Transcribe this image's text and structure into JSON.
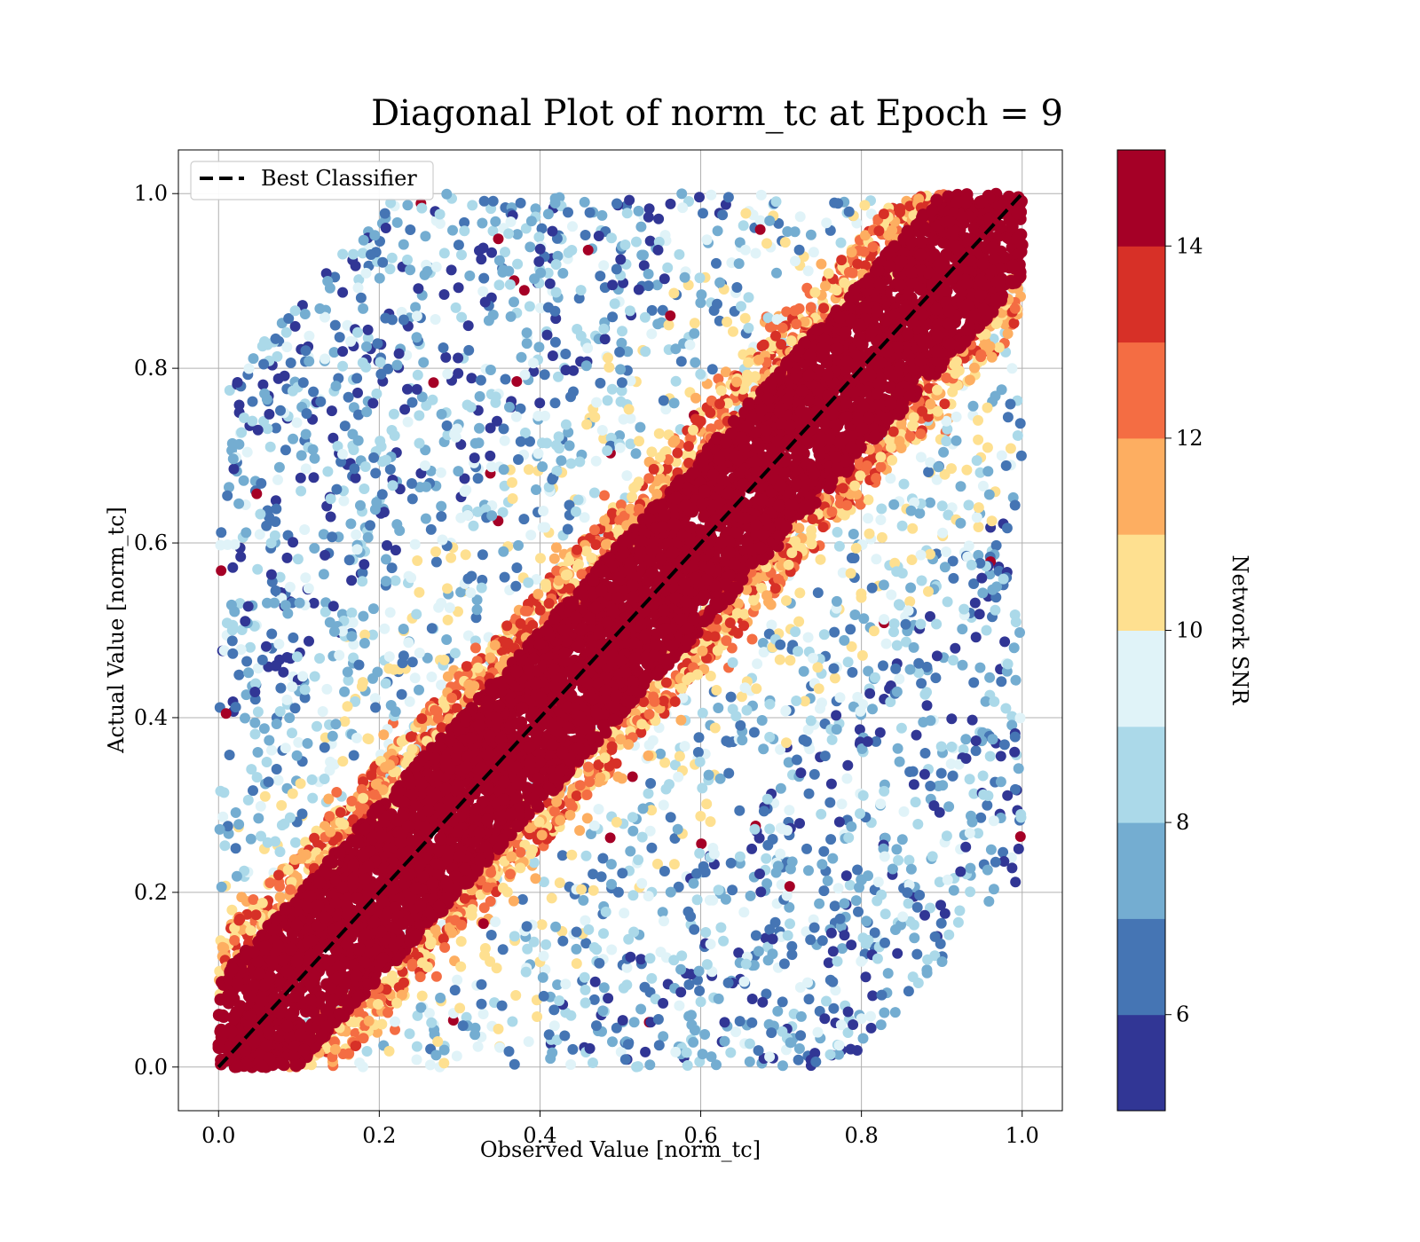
{
  "chart_data": {
    "type": "scatter",
    "title": "Diagonal Plot of norm_tc at Epoch = 9",
    "xlabel": "Observed Value [norm_tc]",
    "ylabel": "Actual Value [norm_tc]",
    "xlim": [
      -0.05,
      1.05
    ],
    "ylim": [
      -0.05,
      1.05
    ],
    "xticks": [
      "0.0",
      "0.2",
      "0.4",
      "0.6",
      "0.8",
      "1.0"
    ],
    "xtick_values": [
      0.0,
      0.2,
      0.4,
      0.6,
      0.8,
      1.0
    ],
    "yticks": [
      "0.0",
      "0.2",
      "0.4",
      "0.6",
      "0.8",
      "1.0"
    ],
    "ytick_values": [
      0.0,
      0.2,
      0.4,
      0.6,
      0.8,
      1.0
    ],
    "grid": true,
    "legend": {
      "location": "top-left",
      "entries": [
        {
          "label": "Best Classifier",
          "style": "dashed",
          "color": "#000000"
        }
      ]
    },
    "reference_line": {
      "x": [
        0.0,
        1.0
      ],
      "y": [
        0.0,
        1.0
      ]
    },
    "colorbar": {
      "label": "Network SNR",
      "range": [
        5,
        15
      ],
      "tick_values": [
        6,
        8,
        10,
        12,
        14
      ],
      "ticks": [
        "6",
        "8",
        "10",
        "12",
        "14"
      ],
      "colors": [
        "#313695",
        "#4575b4",
        "#74add1",
        "#abd9e9",
        "#e0f3f8",
        "#fee090",
        "#fdae61",
        "#f46d43",
        "#d73027",
        "#a50026"
      ]
    },
    "point_cloud": {
      "description_of_distribution": "dense high-SNR points near y=x, lower-SNR points spread further away",
      "high_snr_band_half_width": 0.1,
      "domain": [
        0.0,
        1.0
      ]
    }
  }
}
